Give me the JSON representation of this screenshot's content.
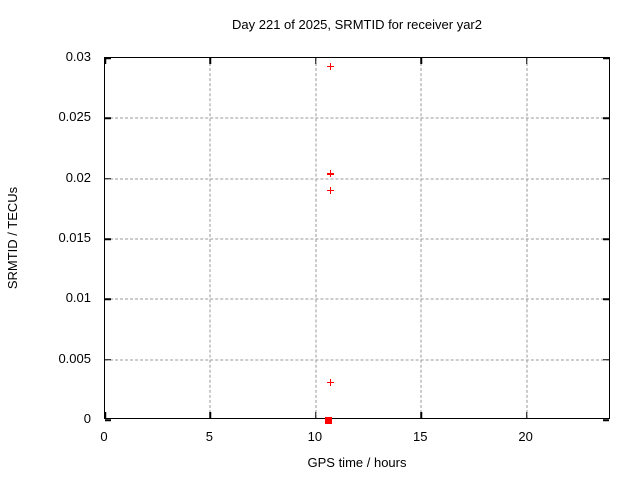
{
  "chart_data": {
    "type": "scatter",
    "title": "Day 221 of 2025, SRMTID for receiver yar2",
    "xlabel": "GPS time / hours",
    "ylabel": "SRMTID / TECUs",
    "xlim": [
      0,
      24
    ],
    "ylim": [
      0,
      0.03
    ],
    "xticks": [
      0,
      5,
      10,
      15,
      20
    ],
    "xtick_labels": [
      "0",
      "5",
      "10",
      "15",
      "20"
    ],
    "yticks": [
      0,
      0.005,
      0.01,
      0.015,
      0.02,
      0.025,
      0.03
    ],
    "ytick_labels": [
      "0",
      "0.005",
      "0.01",
      "0.015",
      "0.02",
      "0.025",
      "0.03"
    ],
    "grid": true,
    "grid_style": "dashed",
    "legend": "none",
    "series": [
      {
        "name": "srmtid-points",
        "marker": "plus",
        "color": "#ff0000",
        "points": [
          [
            10.7,
            0.0293
          ],
          [
            10.7,
            0.0204
          ],
          [
            10.7,
            0.019
          ],
          [
            10.7,
            0.0031
          ]
        ]
      },
      {
        "name": "zero-flag-point",
        "marker": "filled-square",
        "color": "#ff0000",
        "points": [
          [
            10.6,
            0.0
          ]
        ]
      }
    ]
  },
  "colors": {
    "background": "#ffffff",
    "border": "#000000",
    "grid": "#9a9a9a",
    "text": "#000000",
    "marker": "#ff0000"
  }
}
